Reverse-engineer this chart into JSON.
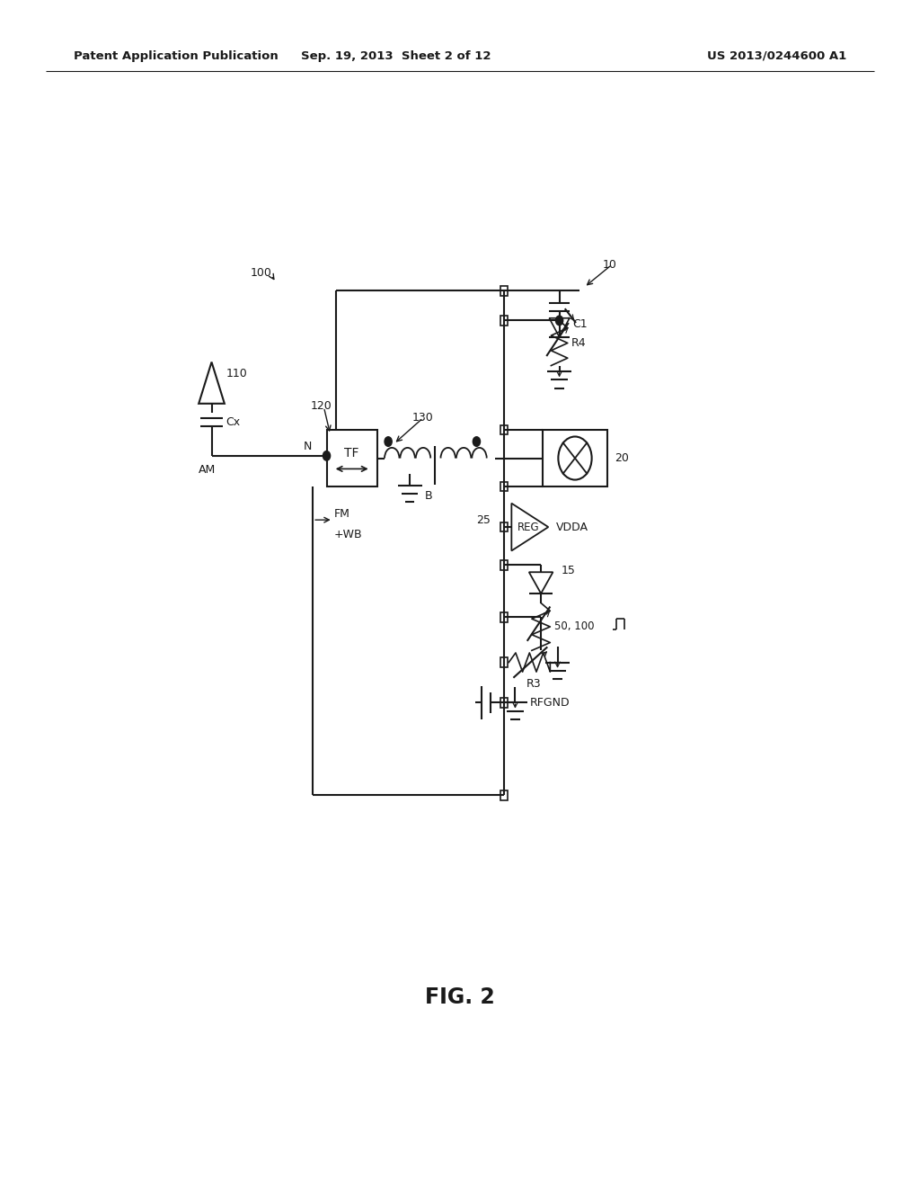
{
  "bg_color": "#ffffff",
  "line_color": "#1a1a1a",
  "header_left": "Patent Application Publication",
  "header_center": "Sep. 19, 2013  Sheet 2 of 12",
  "header_right": "US 2013/0244600 A1",
  "figure_label": "FIG. 2"
}
